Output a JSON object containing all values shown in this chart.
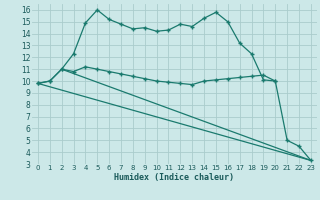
{
  "title": "",
  "xlabel": "Humidex (Indice chaleur)",
  "bg_color": "#cce8e8",
  "grid_color": "#aacccc",
  "line_color": "#1a7a6e",
  "xlim": [
    -0.5,
    23.5
  ],
  "ylim": [
    3,
    16.5
  ],
  "xticks": [
    0,
    1,
    2,
    3,
    4,
    5,
    6,
    7,
    8,
    9,
    10,
    11,
    12,
    13,
    14,
    15,
    16,
    17,
    18,
    19,
    20,
    21,
    22,
    23
  ],
  "yticks": [
    3,
    4,
    5,
    6,
    7,
    8,
    9,
    10,
    11,
    12,
    13,
    14,
    15,
    16
  ],
  "line1_x": [
    0,
    1,
    2,
    3,
    4,
    5,
    6,
    7,
    8,
    9,
    10,
    11,
    12,
    13,
    14,
    15,
    16,
    17,
    18,
    19,
    20,
    21,
    22,
    23
  ],
  "line1_y": [
    9.8,
    10.0,
    11.0,
    12.3,
    14.9,
    16.0,
    15.2,
    14.8,
    14.4,
    14.5,
    14.2,
    14.3,
    14.8,
    14.6,
    15.3,
    15.8,
    15.0,
    13.2,
    12.3,
    10.1,
    10.0,
    5.0,
    4.5,
    3.3
  ],
  "line2_x": [
    0,
    1,
    2,
    3,
    4,
    5,
    6,
    7,
    8,
    9,
    10,
    11,
    12,
    13,
    14,
    15,
    16,
    17,
    18,
    19,
    20
  ],
  "line2_y": [
    9.8,
    10.0,
    11.0,
    10.8,
    11.2,
    11.0,
    10.8,
    10.6,
    10.4,
    10.2,
    10.0,
    9.9,
    9.8,
    9.7,
    10.0,
    10.1,
    10.2,
    10.3,
    10.4,
    10.5,
    10.0
  ],
  "line3_x": [
    0,
    23
  ],
  "line3_y": [
    9.8,
    3.3
  ],
  "line4_x": [
    2,
    23
  ],
  "line4_y": [
    11.0,
    3.3
  ],
  "marker": "+",
  "markersize": 3.5,
  "linewidth": 0.9
}
